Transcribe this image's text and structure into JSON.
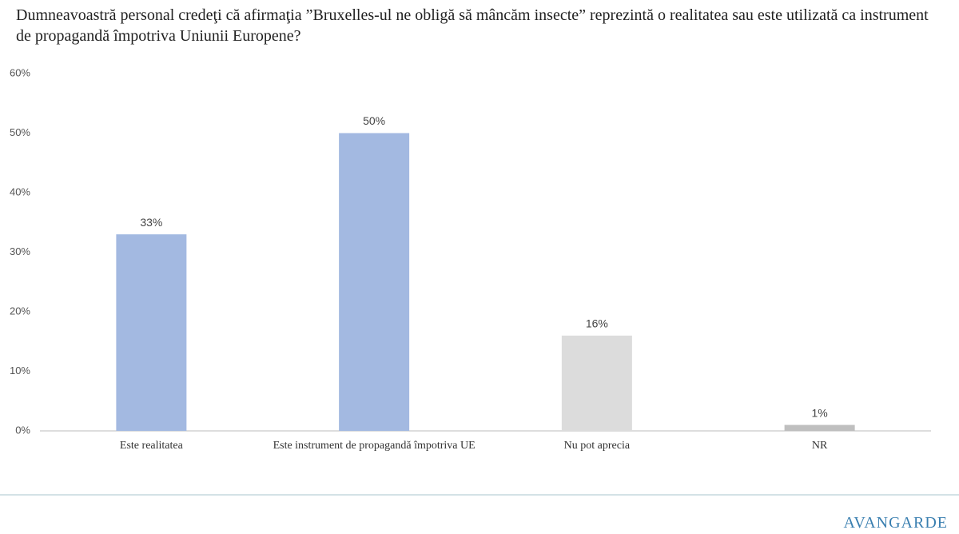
{
  "chart_data": {
    "type": "bar",
    "title": "Dumneavoastră personal credeţi că afirmaţia ”Bruxelles-ul ne obligă să mâncăm insecte” reprezintă o realitatea sau este utilizată ca instrument de propagandă împotriva Uniunii Europene?",
    "categories": [
      "Este realitatea",
      "Este instrument de propagandă împotriva UE",
      "Nu pot aprecia",
      "NR"
    ],
    "values": [
      33,
      50,
      16,
      1
    ],
    "value_labels": [
      "33%",
      "50%",
      "16%",
      "1%"
    ],
    "colors": [
      "#a3b9e1",
      "#a3b9e1",
      "#dcdcdc",
      "#bfbfbf"
    ],
    "ylim": [
      0,
      60
    ],
    "yticks": [
      {
        "value": 0,
        "label": "0%"
      },
      {
        "value": 10,
        "label": "10%"
      },
      {
        "value": 20,
        "label": "20%"
      },
      {
        "value": 30,
        "label": "30%"
      },
      {
        "value": 40,
        "label": "40%"
      },
      {
        "value": 50,
        "label": "50%"
      },
      {
        "value": 60,
        "label": "60%"
      }
    ],
    "grid": false,
    "logo": "AVANGARDE"
  }
}
